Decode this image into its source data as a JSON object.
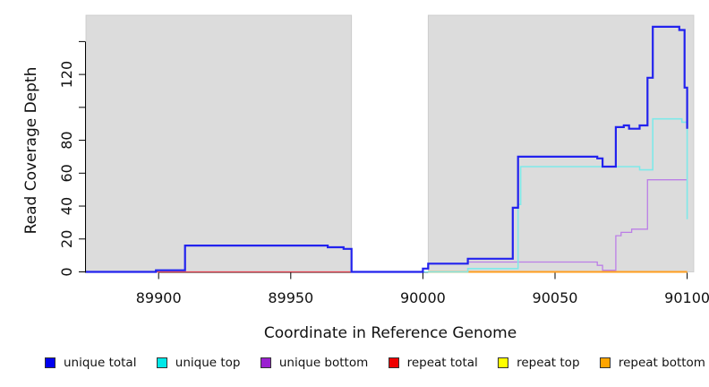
{
  "chart_data": {
    "type": "line",
    "title": "",
    "xlabel": "Coordinate in Reference Genome",
    "ylabel": "Read Coverage Depth",
    "xlim": [
      89872.5,
      90102.5
    ],
    "ylim": [
      0,
      156
    ],
    "grid": false,
    "legend_position": "bottom",
    "background_shading_color": "#dcdcdc",
    "shaded_regions": [
      {
        "from": 89872.5,
        "to": 89973,
        "color": "#dcdcdc"
      },
      {
        "from": 90002,
        "to": 90102.5,
        "color": "#dcdcdc"
      }
    ],
    "x_ticks": [
      {
        "value": 89900,
        "label": "89900"
      },
      {
        "value": 89950,
        "label": "89950"
      },
      {
        "value": 90000,
        "label": "90000"
      },
      {
        "value": 90050,
        "label": "90050"
      },
      {
        "value": 90100,
        "label": "90100"
      }
    ],
    "y_ticks": [
      {
        "value": 0,
        "label": "0"
      },
      {
        "value": 20,
        "label": "20"
      },
      {
        "value": 40,
        "label": "40"
      },
      {
        "value": 60,
        "label": "60"
      },
      {
        "value": 80,
        "label": "80"
      },
      {
        "value": 100,
        "label": ""
      },
      {
        "value": 120,
        "label": "120"
      },
      {
        "value": 140,
        "label": ""
      }
    ],
    "draw_order": [
      4,
      5,
      3,
      2,
      1,
      0
    ],
    "series": [
      {
        "name": "unique total",
        "line_color": "#2222EE",
        "line_width": 2.2,
        "steps": [
          [
            89872.5,
            0
          ],
          [
            89899,
            1
          ],
          [
            89910,
            16
          ],
          [
            89964,
            15
          ],
          [
            89970,
            14
          ],
          [
            89973,
            0
          ],
          [
            90000,
            2
          ],
          [
            90002,
            5
          ],
          [
            90017,
            8
          ],
          [
            90034,
            39
          ],
          [
            90036,
            70
          ],
          [
            90066,
            69
          ],
          [
            90068,
            64
          ],
          [
            90073,
            88
          ],
          [
            90076,
            89
          ],
          [
            90078,
            87
          ],
          [
            90082,
            89
          ],
          [
            90085,
            118
          ],
          [
            90087,
            149
          ],
          [
            90097,
            147
          ],
          [
            90099,
            112
          ],
          [
            90100,
            87
          ]
        ]
      },
      {
        "name": "unique top",
        "line_color": "#7FE9E9",
        "line_width": 1.6,
        "steps": [
          [
            89872.5,
            0
          ],
          [
            89899,
            1
          ],
          [
            89910,
            16
          ],
          [
            89964,
            15
          ],
          [
            89970,
            14
          ],
          [
            89973,
            0
          ],
          [
            90017,
            2
          ],
          [
            90036,
            41
          ],
          [
            90037,
            64
          ],
          [
            90082,
            62
          ],
          [
            90087,
            93
          ],
          [
            90098,
            91
          ],
          [
            90100,
            32
          ]
        ]
      },
      {
        "name": "unique bottom",
        "line_color": "#BB7FE6",
        "line_width": 1.3,
        "steps": [
          [
            90002,
            5
          ],
          [
            90017,
            6
          ],
          [
            90066,
            4
          ],
          [
            90068,
            1
          ],
          [
            90073,
            22
          ],
          [
            90075,
            24
          ],
          [
            90079,
            26
          ],
          [
            90085,
            56
          ],
          [
            90100,
            56
          ]
        ]
      },
      {
        "name": "repeat total",
        "line_color": "#E0404E",
        "line_width": 1.3,
        "steps": [
          [
            89872.5,
            0
          ],
          [
            89973,
            0
          ]
        ]
      },
      {
        "name": "repeat top",
        "line_color": "#EEEE33",
        "line_width": 1.3,
        "steps": [
          [
            90002,
            0
          ],
          [
            90100,
            0
          ]
        ]
      },
      {
        "name": "repeat bottom",
        "line_color": "#FF9D1E",
        "line_width": 2,
        "steps": [
          [
            90002,
            0
          ],
          [
            90100,
            0
          ]
        ]
      }
    ],
    "legend": [
      {
        "label": "unique total",
        "color": "#0000EE"
      },
      {
        "label": "unique top",
        "color": "#00E8E8"
      },
      {
        "label": "unique bottom",
        "color": "#9A20D0"
      },
      {
        "label": "repeat total",
        "color": "#EE0000"
      },
      {
        "label": "repeat top",
        "color": "#FFFF00"
      },
      {
        "label": "repeat bottom",
        "color": "#FFA500"
      }
    ]
  }
}
